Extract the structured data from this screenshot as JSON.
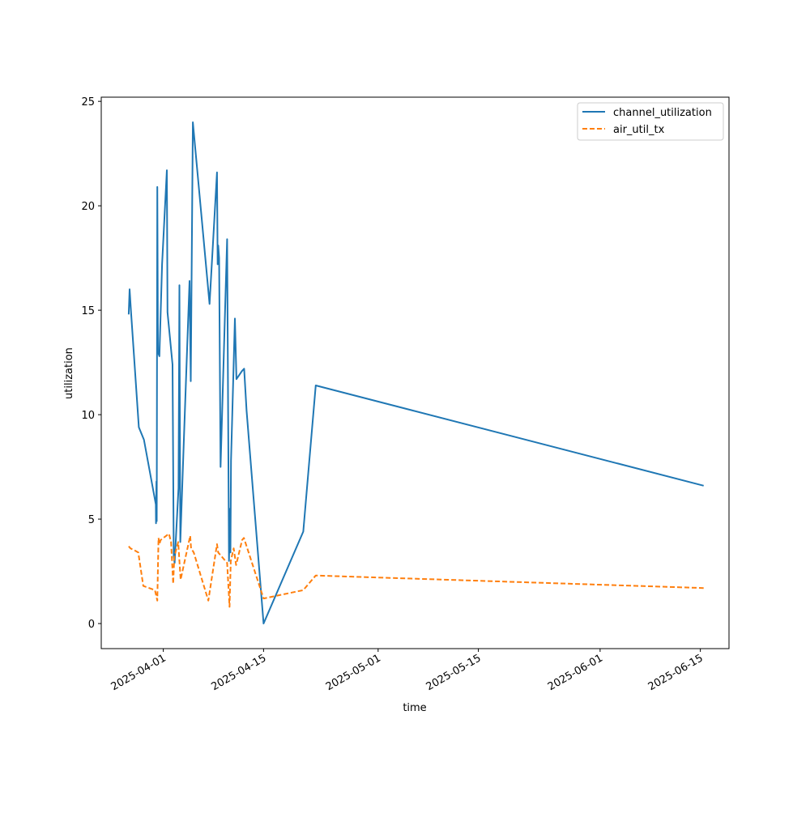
{
  "colors": {
    "channel_utilization": "#1f77b4",
    "air_util_tx": "#ff7f0e"
  },
  "chart_data": {
    "type": "line",
    "title": "",
    "xlabel": "time",
    "ylabel": "utilization",
    "xlim": [
      "2025-03-23T08:00",
      "2025-06-19T00:00"
    ],
    "ylim": [
      -1.2,
      25.2
    ],
    "grid": false,
    "legend_position": "top-right",
    "x_ticks": [
      "2025-04-01",
      "2025-04-15",
      "2025-05-01",
      "2025-05-15",
      "2025-06-01",
      "2025-06-15"
    ],
    "y_ticks": [
      0,
      5,
      10,
      15,
      20,
      25
    ],
    "series": [
      {
        "name": "channel_utilization",
        "style": "solid",
        "points": [
          [
            "2025-03-27T04:00",
            14.8
          ],
          [
            "2025-03-27T07:00",
            16.0
          ],
          [
            "2025-03-27T12:00",
            14.9
          ],
          [
            "2025-03-28T14:00",
            9.4
          ],
          [
            "2025-03-29T07:00",
            8.8
          ],
          [
            "2025-03-30T23:00",
            5.7
          ],
          [
            "2025-03-30T23:30",
            4.8
          ],
          [
            "2025-03-31T01:00",
            6.8
          ],
          [
            "2025-03-31T02:00",
            4.9
          ],
          [
            "2025-03-31T04:00",
            20.9
          ],
          [
            "2025-03-31T06:00",
            13.0
          ],
          [
            "2025-03-31T11:00",
            12.8
          ],
          [
            "2025-03-31T20:00",
            17.2
          ],
          [
            "2025-04-01T12:00",
            21.7
          ],
          [
            "2025-04-01T14:00",
            14.9
          ],
          [
            "2025-04-02T07:00",
            12.4
          ],
          [
            "2025-04-02T11:00",
            3.2
          ],
          [
            "2025-04-02T14:00",
            2.9
          ],
          [
            "2025-04-03T03:00",
            6.5
          ],
          [
            "2025-04-03T06:00",
            16.2
          ],
          [
            "2025-04-03T09:00",
            3.9
          ],
          [
            "2025-04-03T21:00",
            8.8
          ],
          [
            "2025-04-04T16:00",
            16.4
          ],
          [
            "2025-04-04T20:00",
            11.6
          ],
          [
            "2025-04-05T03:00",
            24.0
          ],
          [
            "2025-04-07T11:00",
            15.3
          ],
          [
            "2025-04-08T12:00",
            21.6
          ],
          [
            "2025-04-08T14:00",
            17.2
          ],
          [
            "2025-04-08T16:00",
            18.1
          ],
          [
            "2025-04-08T19:00",
            17.5
          ],
          [
            "2025-04-09T00:00",
            7.5
          ],
          [
            "2025-04-09T22:00",
            18.4
          ],
          [
            "2025-04-10T04:00",
            3.0
          ],
          [
            "2025-04-10T08:00",
            5.5
          ],
          [
            "2025-04-10T09:00",
            3.4
          ],
          [
            "2025-04-10T11:00",
            7.8
          ],
          [
            "2025-04-11T00:00",
            14.6
          ],
          [
            "2025-04-11T05:00",
            11.7
          ],
          [
            "2025-04-12T00:00",
            12.1
          ],
          [
            "2025-04-12T07:00",
            12.2
          ],
          [
            "2025-04-12T15:00",
            10.2
          ],
          [
            "2025-04-15T00:00",
            0.0
          ],
          [
            "2025-04-20T13:00",
            4.4
          ],
          [
            "2025-04-22T07:00",
            11.4
          ],
          [
            "2025-06-15T11:00",
            6.6
          ]
        ]
      },
      {
        "name": "air_util_tx",
        "style": "dashed",
        "points": [
          [
            "2025-03-27T04:00",
            3.7
          ],
          [
            "2025-03-27T10:00",
            3.6
          ],
          [
            "2025-03-28T00:00",
            3.5
          ],
          [
            "2025-03-28T12:00",
            3.4
          ],
          [
            "2025-03-29T05:00",
            1.8
          ],
          [
            "2025-03-30T20:00",
            1.6
          ],
          [
            "2025-03-31T04:00",
            1.1
          ],
          [
            "2025-03-31T08:00",
            4.1
          ],
          [
            "2025-03-31T11:00",
            3.8
          ],
          [
            "2025-03-31T15:00",
            4.0
          ],
          [
            "2025-04-01T19:00",
            4.3
          ],
          [
            "2025-04-02T02:00",
            3.9
          ],
          [
            "2025-04-02T09:00",
            1.9
          ],
          [
            "2025-04-02T13:00",
            3.2
          ],
          [
            "2025-04-03T02:00",
            3.9
          ],
          [
            "2025-04-03T10:00",
            2.1
          ],
          [
            "2025-04-04T18:00",
            4.2
          ],
          [
            "2025-04-04T21:00",
            3.6
          ],
          [
            "2025-04-05T06:00",
            3.4
          ],
          [
            "2025-04-07T07:00",
            1.1
          ],
          [
            "2025-04-08T12:00",
            3.8
          ],
          [
            "2025-04-08T16:00",
            3.4
          ],
          [
            "2025-04-09T22:00",
            2.9
          ],
          [
            "2025-04-10T06:00",
            0.8
          ],
          [
            "2025-04-10T10:00",
            3.0
          ],
          [
            "2025-04-10T20:00",
            3.6
          ],
          [
            "2025-04-11T04:00",
            2.8
          ],
          [
            "2025-04-12T00:00",
            4.0
          ],
          [
            "2025-04-12T06:00",
            4.1
          ],
          [
            "2025-04-15T00:00",
            1.2
          ],
          [
            "2025-04-20T13:00",
            1.6
          ],
          [
            "2025-04-22T07:00",
            2.3
          ],
          [
            "2025-06-15T11:00",
            1.7
          ]
        ]
      }
    ]
  }
}
